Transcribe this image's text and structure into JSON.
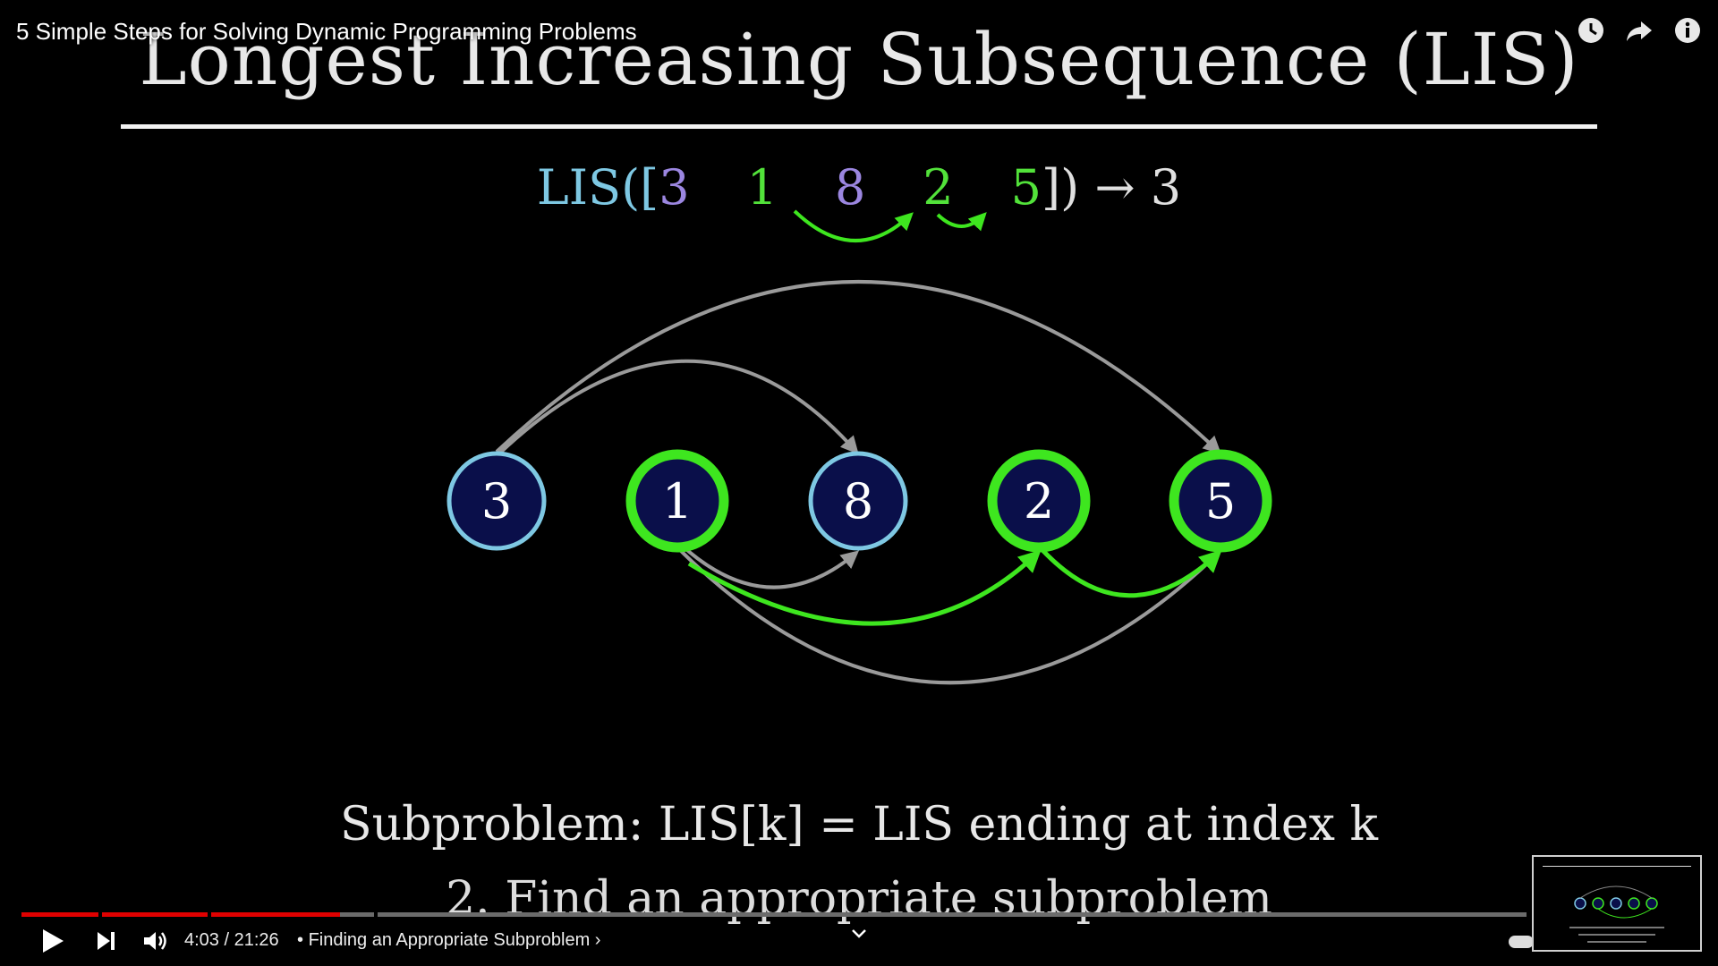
{
  "video": {
    "title": "5 Simple Steps for Solving Dynamic Programming Problems"
  },
  "slide": {
    "title": "Longest Increasing Subsequence (LIS)",
    "lis_prefix": "LIS([",
    "sequence": [
      {
        "value": "3",
        "color": "#9b86e0"
      },
      {
        "value": "1",
        "color": "#52e23a"
      },
      {
        "value": "8",
        "color": "#9b86e0"
      },
      {
        "value": "2",
        "color": "#52e23a"
      },
      {
        "value": "5",
        "color": "#52e23a"
      }
    ],
    "lis_suffix": "])",
    "arrow": "→",
    "result": "3",
    "nodes": [
      {
        "label": "3",
        "highlight": false
      },
      {
        "label": "1",
        "highlight": true
      },
      {
        "label": "8",
        "highlight": false
      },
      {
        "label": "2",
        "highlight": true
      },
      {
        "label": "5",
        "highlight": true
      }
    ],
    "subproblem": "Subproblem:  LIS[k] = LIS ending at index k",
    "step": "2.  Find an appropriate subproblem",
    "colors": {
      "node_fill": "#0a0f4a",
      "node_ring": "#7ec8e3",
      "highlight_ring": "#3ee61f",
      "edge_gray": "#9a9a9a",
      "edge_green": "#3ee61f"
    }
  },
  "player": {
    "time": "4:03 / 21:26",
    "separator": "•",
    "chapter": "Finding an Appropriate Subproblem",
    "chapter_chevron": "›",
    "progress_fraction": 0.189,
    "icons": [
      "watch-later-icon",
      "share-icon",
      "info-icon",
      "play-icon",
      "next-icon",
      "volume-icon",
      "chevron-down-icon"
    ]
  }
}
